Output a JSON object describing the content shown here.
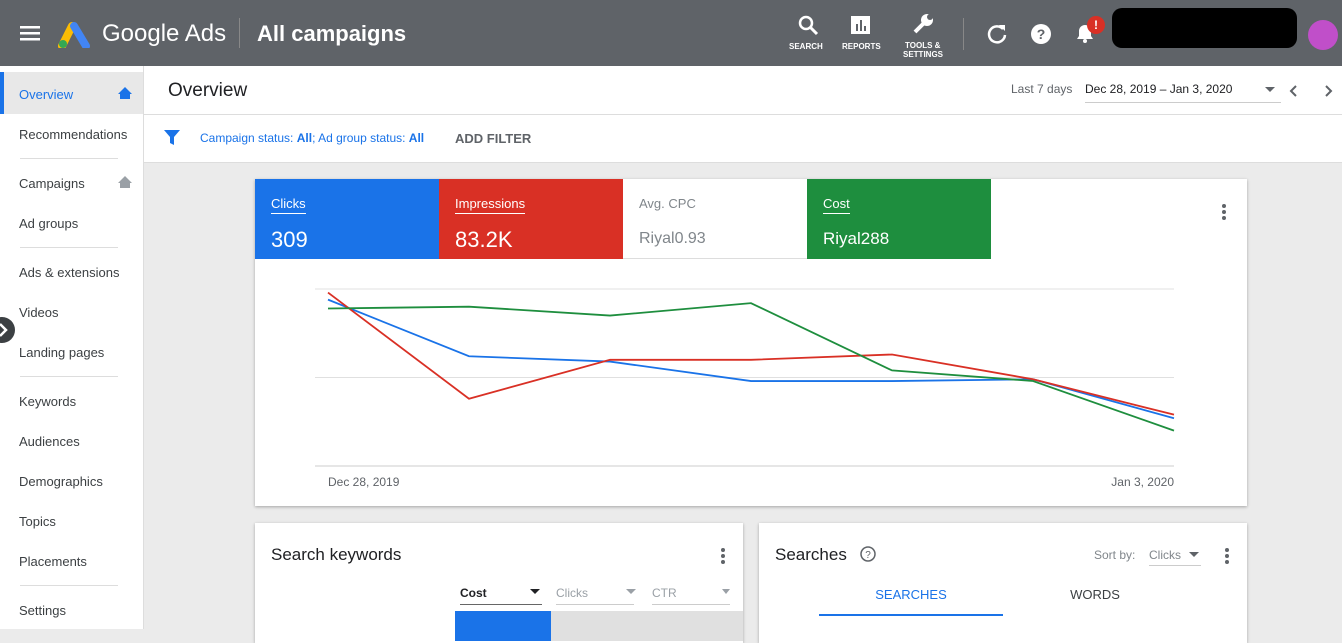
{
  "header": {
    "product": "Google Ads",
    "title": "All campaigns",
    "tools": [
      "SEARCH",
      "REPORTS",
      "TOOLS &",
      "SETTINGS"
    ],
    "badge": "!"
  },
  "sidebar": {
    "items": [
      "Overview",
      "Recommendations",
      "Campaigns",
      "Ad groups",
      "Ads & extensions",
      "Videos",
      "Landing pages",
      "Keywords",
      "Audiences",
      "Demographics",
      "Topics",
      "Placements",
      "Settings"
    ]
  },
  "page_title": "Overview",
  "date_range": {
    "label": "Last 7 days",
    "value": "Dec 28, 2019 – Jan 3, 2020"
  },
  "filter": {
    "parts": [
      "Campaign status: ",
      "All",
      "; Ad group status: ",
      "All"
    ],
    "add": "ADD FILTER"
  },
  "metrics": [
    {
      "label": "Clicks",
      "value": "309"
    },
    {
      "label": "Impressions",
      "value": "83.2K"
    },
    {
      "label": "Avg. CPC",
      "value": "Riyal0.93"
    },
    {
      "label": "Cost",
      "value": "Riyal288"
    }
  ],
  "chart": {
    "type": "line",
    "x": [
      "Dec 28, 2019",
      null,
      null,
      null,
      null,
      null,
      "Jan 3, 2020"
    ],
    "ylim": [
      0,
      100
    ],
    "series": [
      {
        "name": "Clicks",
        "color": "#1a73e8",
        "values": [
          94,
          62,
          59,
          48,
          48,
          49,
          27
        ]
      },
      {
        "name": "Impressions",
        "color": "#d93025",
        "values": [
          98,
          38,
          60,
          60,
          63,
          49,
          29
        ]
      },
      {
        "name": "Cost",
        "color": "#1e8e3e",
        "values": [
          89,
          90,
          85,
          92,
          54,
          48,
          20
        ]
      }
    ]
  },
  "search_keywords": {
    "title": "Search keywords",
    "columns": [
      "Cost",
      "Clicks",
      "CTR"
    ]
  },
  "searches": {
    "title": "Searches",
    "sort_label": "Sort by:",
    "sort_value": "Clicks",
    "tabs": [
      "SEARCHES",
      "WORDS"
    ]
  }
}
